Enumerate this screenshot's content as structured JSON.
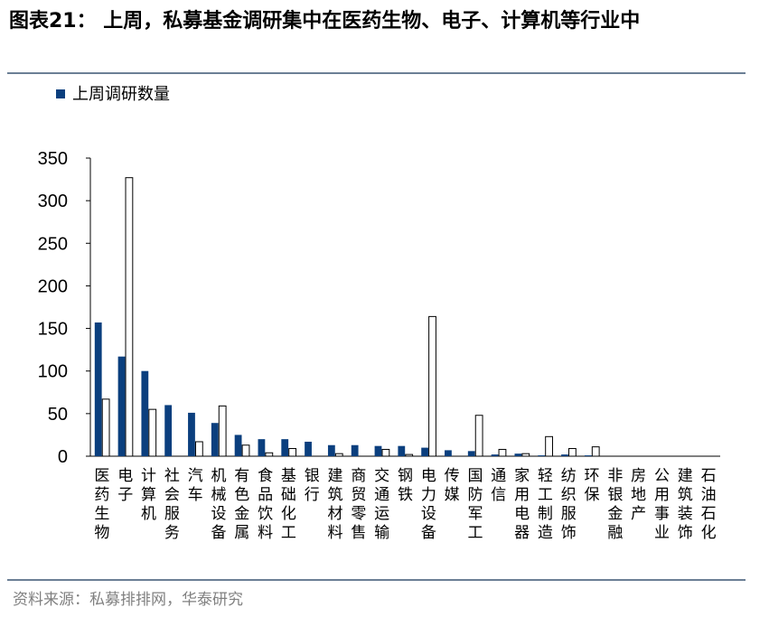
{
  "title": "图表21： 上周，私募基金调研集中在医药生物、电子、计算机等行业中",
  "source": "资料来源：私募排排网，华泰研究",
  "colors": {
    "series1": "#0b3f7e",
    "series2": "#ffffff",
    "stroke": "#000000",
    "rule": "#6b7f95"
  },
  "chart_data": {
    "type": "bar",
    "categories": [
      "医药生物",
      "电子",
      "计算机",
      "社会服务",
      "汽车",
      "机械设备",
      "有色金属",
      "食品饮料",
      "基础化工",
      "银行",
      "建筑材料",
      "商贸零售",
      "交通运输",
      "钢铁",
      "电力设备",
      "传媒",
      "国防军工",
      "通信",
      "家用电器",
      "轻工制造",
      "纺织服饰",
      "环保",
      "非银金融",
      "房地产",
      "公用事业",
      "建筑装饰",
      "石油石化"
    ],
    "series": [
      {
        "name": "上周调研数量",
        "values": [
          157,
          117,
          100,
          60,
          51,
          39,
          25,
          20,
          20,
          17,
          13,
          13,
          12,
          12,
          10,
          7,
          6,
          2,
          3,
          1,
          2,
          1,
          0,
          0,
          0,
          0,
          0
        ]
      },
      {
        "values": [
          67,
          327,
          55,
          0,
          17,
          59,
          13,
          4,
          9,
          0,
          3,
          0,
          8,
          2,
          164,
          0,
          48,
          8,
          3,
          23,
          9,
          11,
          0,
          0,
          0,
          0,
          0
        ]
      }
    ],
    "yticks": [
      "0",
      "50",
      "100",
      "150",
      "200",
      "250",
      "300",
      "350"
    ],
    "ylim": [
      0,
      350
    ],
    "legend_position": "top-left",
    "xlabel": "",
    "ylabel": ""
  }
}
